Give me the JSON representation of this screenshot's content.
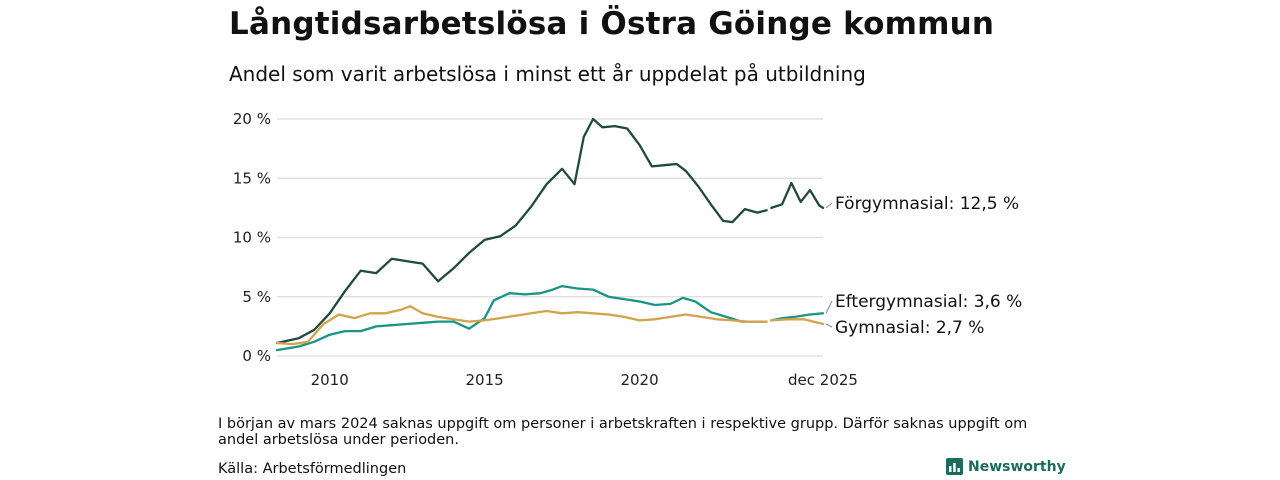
{
  "title": "Långtidsarbetslösa i Östra Göinge kommun",
  "subtitle": "Andel som varit arbetslösa i minst ett år uppdelat på utbildning",
  "note": "I början av mars 2024 saknas uppgift om personer i arbetskraften i respektive grupp. Därför saknas uppgift om andel arbetslösa under perioden.",
  "source": "Källa: Arbetsförmedlingen",
  "brand": {
    "name": "Newsworthy",
    "logo_icon": "bar-chart-icon",
    "color": "#1d6b5e"
  },
  "chart_data": {
    "type": "line",
    "title": "Långtidsarbetslösa i Östra Göinge kommun",
    "subtitle": "Andel som varit arbetslösa i minst ett år uppdelat på utbildning",
    "xlabel": "",
    "ylabel": "",
    "x_range": [
      2008.3,
      2025.92
    ],
    "ylim": [
      0,
      20
    ],
    "yticks": [
      0,
      5,
      10,
      15,
      20
    ],
    "ytick_labels": [
      "0 %",
      "5 %",
      "10 %",
      "15 %",
      "20 %"
    ],
    "xticks": [
      2010,
      2015,
      2020,
      2025.92
    ],
    "xtick_labels": [
      "2010",
      "2015",
      "2020",
      "dec 2025"
    ],
    "grid": "horizontal",
    "gap": [
      2024.12,
      2024.25
    ],
    "series": [
      {
        "name": "Förgymnasial",
        "end_label": "Förgymnasial: 12,5 %",
        "color": "#1e4a40",
        "points": [
          [
            2008.3,
            1.1
          ],
          [
            2009.0,
            1.5
          ],
          [
            2009.5,
            2.2
          ],
          [
            2010.0,
            3.6
          ],
          [
            2010.5,
            5.5
          ],
          [
            2011.0,
            7.2
          ],
          [
            2011.5,
            7.0
          ],
          [
            2012.0,
            8.2
          ],
          [
            2012.5,
            8.0
          ],
          [
            2013.0,
            7.8
          ],
          [
            2013.5,
            6.3
          ],
          [
            2014.0,
            7.4
          ],
          [
            2014.5,
            8.7
          ],
          [
            2015.0,
            9.8
          ],
          [
            2015.5,
            10.1
          ],
          [
            2016.0,
            11.0
          ],
          [
            2016.5,
            12.6
          ],
          [
            2017.0,
            14.5
          ],
          [
            2017.5,
            15.8
          ],
          [
            2017.9,
            14.5
          ],
          [
            2018.2,
            18.5
          ],
          [
            2018.5,
            20.0
          ],
          [
            2018.8,
            19.3
          ],
          [
            2019.2,
            19.4
          ],
          [
            2019.6,
            19.2
          ],
          [
            2020.0,
            17.8
          ],
          [
            2020.4,
            16.0
          ],
          [
            2020.8,
            16.1
          ],
          [
            2021.2,
            16.2
          ],
          [
            2021.5,
            15.6
          ],
          [
            2021.9,
            14.3
          ],
          [
            2022.3,
            12.8
          ],
          [
            2022.7,
            11.4
          ],
          [
            2023.0,
            11.3
          ],
          [
            2023.4,
            12.4
          ],
          [
            2023.8,
            12.1
          ],
          [
            2024.1,
            12.3
          ],
          null,
          [
            2024.25,
            12.5
          ],
          [
            2024.6,
            12.8
          ],
          [
            2024.9,
            14.6
          ],
          [
            2025.2,
            13.0
          ],
          [
            2025.5,
            14.0
          ],
          [
            2025.8,
            12.7
          ],
          [
            2025.92,
            12.5
          ]
        ]
      },
      {
        "name": "Eftergymnasial",
        "end_label": "Eftergymnasial:  3,6 %",
        "color": "#1a9585",
        "points": [
          [
            2008.3,
            0.5
          ],
          [
            2009.0,
            0.8
          ],
          [
            2009.5,
            1.2
          ],
          [
            2010.0,
            1.8
          ],
          [
            2010.5,
            2.1
          ],
          [
            2011.0,
            2.1
          ],
          [
            2011.5,
            2.5
          ],
          [
            2012.0,
            2.6
          ],
          [
            2012.5,
            2.7
          ],
          [
            2013.0,
            2.8
          ],
          [
            2013.5,
            2.9
          ],
          [
            2014.0,
            2.9
          ],
          [
            2014.5,
            2.3
          ],
          [
            2015.0,
            3.2
          ],
          [
            2015.3,
            4.7
          ],
          [
            2015.8,
            5.3
          ],
          [
            2016.3,
            5.2
          ],
          [
            2016.8,
            5.3
          ],
          [
            2017.2,
            5.6
          ],
          [
            2017.5,
            5.9
          ],
          [
            2018.0,
            5.7
          ],
          [
            2018.5,
            5.6
          ],
          [
            2019.0,
            5.0
          ],
          [
            2019.5,
            4.8
          ],
          [
            2020.0,
            4.6
          ],
          [
            2020.5,
            4.3
          ],
          [
            2021.0,
            4.4
          ],
          [
            2021.4,
            4.9
          ],
          [
            2021.8,
            4.6
          ],
          [
            2022.3,
            3.7
          ],
          [
            2022.8,
            3.3
          ],
          [
            2023.3,
            2.9
          ],
          [
            2023.8,
            2.9
          ],
          [
            2024.1,
            2.9
          ],
          null,
          [
            2024.25,
            3.0
          ],
          [
            2024.6,
            3.2
          ],
          [
            2025.0,
            3.3
          ],
          [
            2025.5,
            3.5
          ],
          [
            2025.92,
            3.6
          ]
        ]
      },
      {
        "name": "Gymnasial",
        "end_label": "Gymnasial:  2,7 %",
        "color": "#d4a24a",
        "points": [
          [
            2008.3,
            1.1
          ],
          [
            2008.8,
            1.0
          ],
          [
            2009.3,
            1.2
          ],
          [
            2009.8,
            2.7
          ],
          [
            2010.3,
            3.5
          ],
          [
            2010.8,
            3.2
          ],
          [
            2011.3,
            3.6
          ],
          [
            2011.8,
            3.6
          ],
          [
            2012.3,
            3.9
          ],
          [
            2012.6,
            4.2
          ],
          [
            2013.0,
            3.6
          ],
          [
            2013.5,
            3.3
          ],
          [
            2014.0,
            3.1
          ],
          [
            2014.5,
            2.9
          ],
          [
            2015.0,
            3.0
          ],
          [
            2015.5,
            3.2
          ],
          [
            2016.0,
            3.4
          ],
          [
            2016.5,
            3.6
          ],
          [
            2017.0,
            3.8
          ],
          [
            2017.5,
            3.6
          ],
          [
            2018.0,
            3.7
          ],
          [
            2018.5,
            3.6
          ],
          [
            2019.0,
            3.5
          ],
          [
            2019.5,
            3.3
          ],
          [
            2020.0,
            3.0
          ],
          [
            2020.5,
            3.1
          ],
          [
            2021.0,
            3.3
          ],
          [
            2021.5,
            3.5
          ],
          [
            2022.0,
            3.3
          ],
          [
            2022.5,
            3.1
          ],
          [
            2023.0,
            3.0
          ],
          [
            2023.5,
            2.9
          ],
          [
            2024.1,
            2.9
          ],
          null,
          [
            2024.25,
            3.0
          ],
          [
            2024.8,
            3.1
          ],
          [
            2025.3,
            3.1
          ],
          [
            2025.92,
            2.7
          ]
        ]
      }
    ]
  }
}
